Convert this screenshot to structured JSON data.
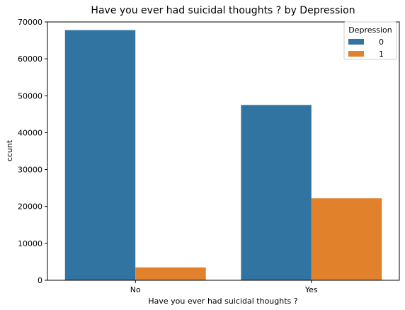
{
  "chart_data": {
    "type": "bar",
    "title": "Have you ever had suicidal thoughts ? by Depression",
    "xlabel": "Have you ever had suicidal thoughts ?",
    "ylabel": "ccunt",
    "categories": [
      "No",
      "Yes"
    ],
    "series": [
      {
        "name": "0",
        "values": [
          67800,
          47500
        ],
        "color": "#3274a1"
      },
      {
        "name": "1",
        "values": [
          3500,
          22200
        ],
        "color": "#e1812c"
      }
    ],
    "ylim": [
      0,
      70000
    ],
    "yticks": [
      0,
      10000,
      20000,
      30000,
      40000,
      50000,
      60000,
      70000
    ],
    "grid": false,
    "legend": {
      "title": "Depression",
      "placement": "top-right"
    }
  }
}
